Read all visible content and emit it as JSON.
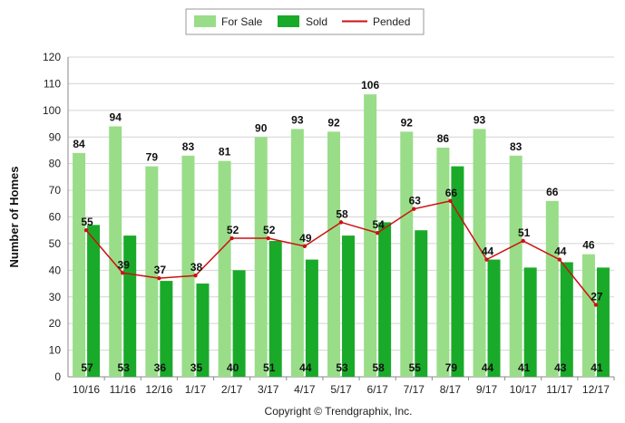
{
  "chart_data": {
    "type": "bar",
    "categories": [
      "10/16",
      "11/16",
      "12/16",
      "1/17",
      "2/17",
      "3/17",
      "4/17",
      "5/17",
      "6/17",
      "7/17",
      "8/17",
      "9/17",
      "10/17",
      "11/17",
      "12/17"
    ],
    "series": [
      {
        "name": "For Sale",
        "kind": "bar",
        "color": "#99dd88",
        "values": [
          84,
          94,
          79,
          83,
          81,
          90,
          93,
          92,
          106,
          92,
          86,
          93,
          83,
          66,
          46
        ]
      },
      {
        "name": "Sold",
        "kind": "bar",
        "color": "#1aaa2a",
        "values": [
          57,
          53,
          36,
          35,
          40,
          51,
          44,
          53,
          58,
          55,
          79,
          44,
          41,
          43,
          41
        ]
      },
      {
        "name": "Pended",
        "kind": "line",
        "color": "#cc1111",
        "values": [
          55,
          39,
          37,
          38,
          52,
          52,
          49,
          58,
          54,
          63,
          66,
          44,
          51,
          44,
          27
        ]
      }
    ],
    "ylabel": "Number of Homes",
    "xlabel": "",
    "ylim": [
      0,
      120
    ],
    "yticks": [
      0,
      10,
      20,
      30,
      40,
      50,
      60,
      70,
      80,
      90,
      100,
      110,
      120
    ],
    "grid": true,
    "legend_position": "top-center"
  },
  "footer": "Copyright © Trendgraphix, Inc."
}
